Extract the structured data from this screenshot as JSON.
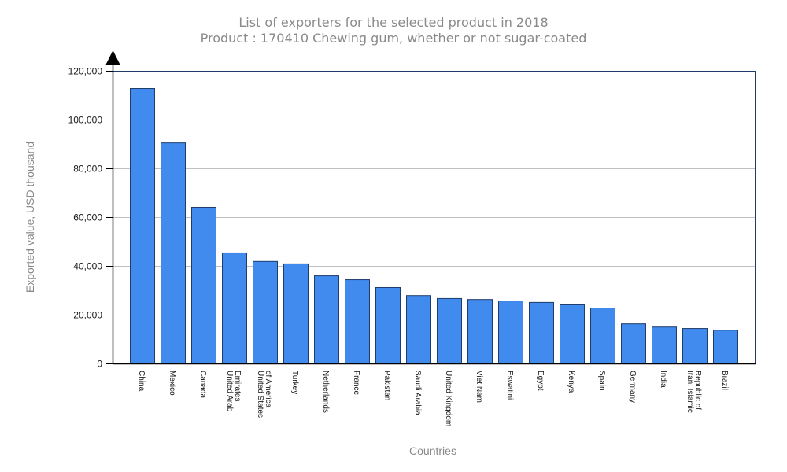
{
  "chart_data": {
    "type": "bar",
    "title": "List of exporters for the selected product in 2018",
    "subtitle": "Product : 170410 Chewing gum, whether or not sugar-coated",
    "xlabel": "Countries",
    "ylabel": "Exported value, USD thousand",
    "ylim": [
      0,
      120000
    ],
    "yticks": [
      0,
      20000,
      40000,
      60000,
      80000,
      100000,
      120000
    ],
    "ytick_labels": [
      "0",
      "20,000",
      "40,000",
      "60,000",
      "80,000",
      "100,000",
      "120,000"
    ],
    "grid": true,
    "categories": [
      [
        "China"
      ],
      [
        "Mexico"
      ],
      [
        "Canada"
      ],
      [
        "United Arab",
        "Emirates"
      ],
      [
        "United States",
        "of America"
      ],
      [
        "Turkey"
      ],
      [
        "Netherlands"
      ],
      [
        "France"
      ],
      [
        "Pakistan"
      ],
      [
        "Saudi Arabia"
      ],
      [
        "United Kingdom"
      ],
      [
        "Viet Nam"
      ],
      [
        "Eswatini"
      ],
      [
        "Egypt"
      ],
      [
        "Kenya"
      ],
      [
        "Spain"
      ],
      [
        "Germany"
      ],
      [
        "India"
      ],
      [
        "Iran, Islamic",
        "Republic of"
      ],
      [
        "Brazil"
      ]
    ],
    "values": [
      112900,
      90600,
      64200,
      45500,
      42000,
      41000,
      36100,
      34500,
      31300,
      28000,
      26800,
      26400,
      25800,
      25200,
      24200,
      22900,
      16400,
      15100,
      14500,
      13800
    ],
    "colors": {
      "bar": "#418aee",
      "bar_border": "#1f3d6b",
      "frame": "#1f3d6b",
      "grid": "#c0c0c0",
      "axis": "#000000"
    }
  }
}
